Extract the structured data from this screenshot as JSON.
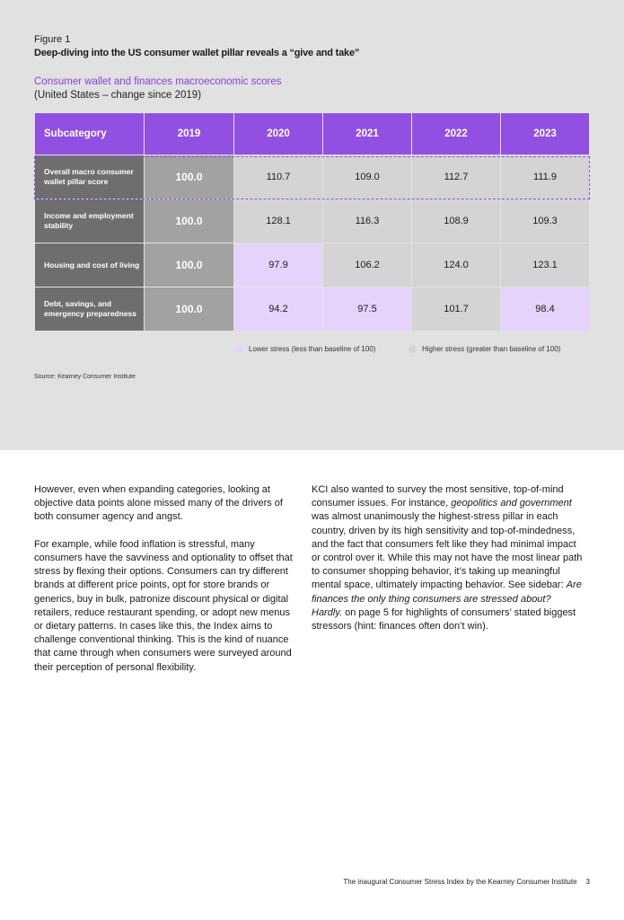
{
  "figure": {
    "label": "Figure 1",
    "title": "Deep-diving into the US consumer wallet pillar reveals a “give and take”",
    "subtitle": "Consumer wallet and finances macroeconomic scores",
    "subtitle2": "(United States – change since 2019)"
  },
  "table": {
    "headers": [
      "Subcategory",
      "2019",
      "2020",
      "2021",
      "2022",
      "2023"
    ],
    "rows": [
      {
        "label": "Overall macro consumer wallet pillar score",
        "values": [
          "100.0",
          "110.7",
          "109.0",
          "112.7",
          "111.9"
        ],
        "highlighted": true
      },
      {
        "label": "Income and employment stability",
        "values": [
          "100.0",
          "128.1",
          "116.3",
          "108.9",
          "109.3"
        ]
      },
      {
        "label": "Housing and cost of living",
        "values": [
          "100.0",
          "97.9",
          "106.2",
          "124.0",
          "123.1"
        ]
      },
      {
        "label": "Debt, savings, and emergency preparedness",
        "values": [
          "100.0",
          "94.2",
          "97.5",
          "101.7",
          "98.4"
        ]
      }
    ]
  },
  "legend": {
    "lower": "Lower stress (less than baseline of 100)",
    "higher": "Higher stress (greater than baseline of 100)"
  },
  "colors": {
    "accent": "#9150e2",
    "lower": "#e6d3fb",
    "higher": "#d4d4d4"
  },
  "source": "Source: Kearney Consumer Institute",
  "body": {
    "left_p1": "However, even when expanding categories, looking at objective data points alone missed many of the drivers of both consumer agency and angst.",
    "left_p2": "For example, while food inflation is stressful, many consumers have the savviness and optionality to offset that stress by flexing their options. Consumers can try different brands at different price points, opt for store brands or generics, buy in bulk, patronize discount physical or digital retailers, reduce restaurant spending, or adopt new menus or dietary patterns. In cases like this, the Index aims to challenge conventional thinking. This is the kind of nuance that came through when consumers were surveyed around their perception of personal flexibility.",
    "right_a": "KCI also wanted to survey the most sensitive, top-of-mind consumer issues. For instance, ",
    "right_b": "geopolitics and government",
    "right_c": " was almost unanimously the highest-stress pillar in each country, driven by its high sensitivity and top-of-mindedness, and the fact that consumers felt like they had minimal impact or control over it. While this may not have the most linear path to consumer shopping behavior, it’s taking up meaningful mental space, ultimately impacting behavior. See sidebar: ",
    "right_d": "Are finances the only thing consumers are stressed about? Hardly.",
    "right_e": " on page 5 for highlights of consumers’ stated biggest stressors (hint: finances often don’t win)."
  },
  "footer": {
    "text": "The inaugural Consumer Stress Index by the Kearney Consumer Institute",
    "page": "3"
  }
}
